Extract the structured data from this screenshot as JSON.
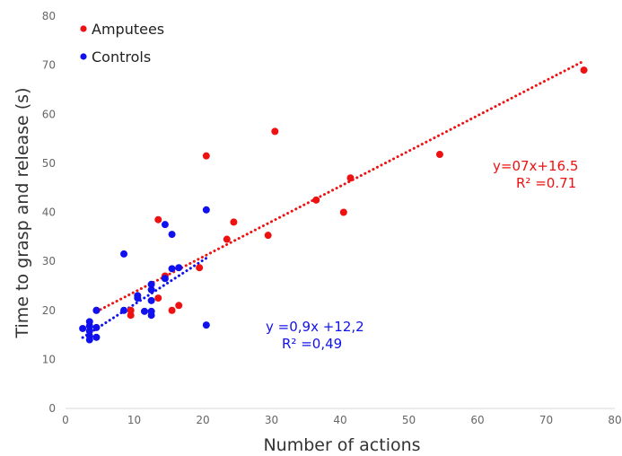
{
  "chart_data": {
    "type": "scatter",
    "xlabel": "Number of actions",
    "ylabel": "Time to grasp and release (s)",
    "xlim": [
      0,
      80
    ],
    "ylim": [
      0,
      80
    ],
    "x_ticks": [
      "0",
      "10",
      "20",
      "30",
      "40",
      "50",
      "60",
      "70",
      "80"
    ],
    "y_ticks": [
      "0",
      "10",
      "20",
      "30",
      "40",
      "50",
      "60",
      "70",
      "80"
    ],
    "grid": false,
    "legend_position": "top-left",
    "series": [
      {
        "name": "Amputees",
        "color": "#ee1111",
        "points": [
          [
            4.5,
            20
          ],
          [
            9.5,
            19
          ],
          [
            9.5,
            20
          ],
          [
            13.5,
            22.5
          ],
          [
            13.5,
            38.5
          ],
          [
            14.5,
            27
          ],
          [
            15.5,
            20
          ],
          [
            16.5,
            21
          ],
          [
            19.5,
            28.7
          ],
          [
            20.5,
            51.5
          ],
          [
            23.5,
            34.5
          ],
          [
            24.5,
            38
          ],
          [
            29.5,
            35.3
          ],
          [
            30.5,
            56.5
          ],
          [
            36.5,
            42.5
          ],
          [
            40.5,
            40
          ],
          [
            41.5,
            47
          ],
          [
            54.5,
            51.8
          ],
          [
            75.5,
            69
          ]
        ],
        "trendline": {
          "x0": 4.5,
          "x1": 75.5,
          "slope": 0.72,
          "intercept": 16.5
        },
        "equation": [
          "y=07x+16.5",
          "R² =0.71"
        ]
      },
      {
        "name": "Controls",
        "color": "#1111ee",
        "points": [
          [
            2.5,
            16.3
          ],
          [
            3.5,
            14
          ],
          [
            3.5,
            14.8
          ],
          [
            3.5,
            15.8
          ],
          [
            3.5,
            16.8
          ],
          [
            3.5,
            17.7
          ],
          [
            4.5,
            14.5
          ],
          [
            4.5,
            16.5
          ],
          [
            4.5,
            20
          ],
          [
            8.5,
            20
          ],
          [
            8.5,
            31.5
          ],
          [
            10.5,
            22.5
          ],
          [
            10.5,
            23
          ],
          [
            11.5,
            19.8
          ],
          [
            12.5,
            19
          ],
          [
            12.5,
            19.8
          ],
          [
            12.5,
            22
          ],
          [
            12.5,
            24.2
          ],
          [
            12.5,
            25.3
          ],
          [
            14.5,
            26.5
          ],
          [
            14.5,
            37.5
          ],
          [
            15.5,
            28.5
          ],
          [
            15.5,
            35.5
          ],
          [
            16.5,
            28.7
          ],
          [
            20.5,
            17
          ],
          [
            20.5,
            40.5
          ]
        ],
        "trendline": {
          "x0": 2.5,
          "x1": 20.8,
          "slope": 0.9,
          "intercept": 12.2
        },
        "equation": [
          "y =0,9x +12,2",
          "R² =0,49"
        ]
      }
    ]
  }
}
